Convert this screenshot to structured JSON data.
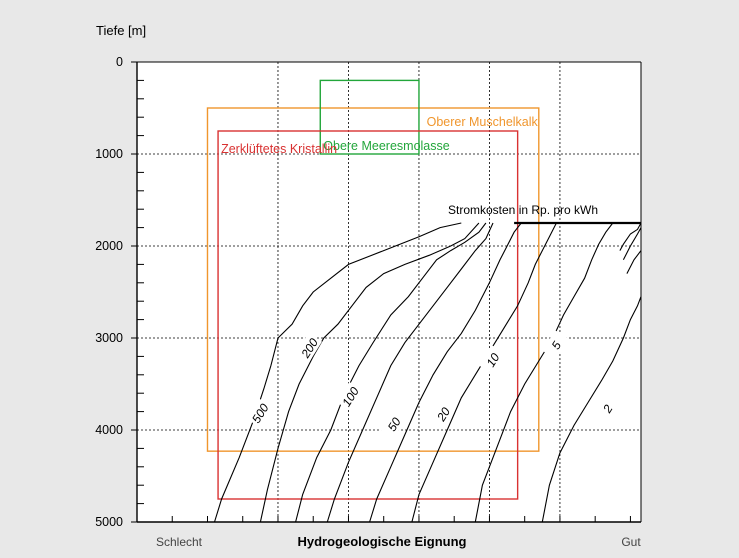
{
  "chart_data": {
    "type": "line",
    "ylabel": "Tiefe [m]",
    "xlabel": "Hydrogeologische Eignung",
    "x_left_label": "Schlecht",
    "x_right_label": "Gut",
    "ylim": [
      0,
      5000
    ],
    "y_inverted": true,
    "y_ticks": [
      "0",
      "1000",
      "2000",
      "3000",
      "4000",
      "5000"
    ],
    "grid": true,
    "colors": {
      "background": "#e8e8e8",
      "plot": "#ffffff",
      "axis": "#000000",
      "curve": "#000000",
      "kristallin": "#d93232",
      "muschelkalk": "#f0962d",
      "meeresmolasse": "#22a63a"
    },
    "regions": [
      {
        "name": "Oberer Muschelkalk",
        "x": [
          1.0,
          5.7
        ],
        "depth": [
          500,
          4230
        ]
      },
      {
        "name": "Obere Meeresmolasse",
        "x": [
          2.6,
          4.0
        ],
        "depth": [
          200,
          1000
        ]
      },
      {
        "name": "Zerklüftetes Kristallin",
        "x": [
          1.15,
          5.4
        ],
        "depth": [
          750,
          4750
        ]
      }
    ],
    "cost_title": "Stromkosten in Rp. pro kWh",
    "series": [
      {
        "name": "500",
        "points": [
          [
            1.1,
            5000
          ],
          [
            1.2,
            4750
          ],
          [
            1.45,
            4300
          ],
          [
            1.65,
            3900
          ],
          [
            1.8,
            3550
          ],
          [
            1.9,
            3300
          ],
          [
            2.0,
            3000
          ],
          [
            2.2,
            2850
          ],
          [
            2.35,
            2650
          ],
          [
            2.5,
            2500
          ],
          [
            3.0,
            2200
          ],
          [
            3.5,
            2050
          ],
          [
            4.0,
            1900
          ],
          [
            4.3,
            1800
          ],
          [
            4.6,
            1750
          ]
        ]
      },
      {
        "name": "200",
        "points": [
          [
            1.75,
            5000
          ],
          [
            1.85,
            4650
          ],
          [
            2.0,
            4200
          ],
          [
            2.15,
            3800
          ],
          [
            2.3,
            3500
          ],
          [
            2.5,
            3200
          ],
          [
            2.65,
            3000
          ],
          [
            2.85,
            2850
          ],
          [
            3.05,
            2650
          ],
          [
            3.25,
            2450
          ],
          [
            3.5,
            2300
          ],
          [
            3.8,
            2200
          ],
          [
            4.15,
            2100
          ],
          [
            4.45,
            2000
          ],
          [
            4.65,
            1920
          ],
          [
            4.85,
            1750
          ]
        ]
      },
      {
        "name": "100",
        "points": [
          [
            2.25,
            5000
          ],
          [
            2.35,
            4700
          ],
          [
            2.55,
            4300
          ],
          [
            2.75,
            4000
          ],
          [
            2.95,
            3600
          ],
          [
            3.15,
            3300
          ],
          [
            3.35,
            3050
          ],
          [
            3.6,
            2750
          ],
          [
            3.85,
            2550
          ],
          [
            4.05,
            2350
          ],
          [
            4.25,
            2150
          ],
          [
            4.45,
            2050
          ],
          [
            4.65,
            1960
          ],
          [
            4.85,
            1850
          ],
          [
            4.95,
            1750
          ]
        ]
      },
      {
        "name": "50",
        "points": [
          [
            2.7,
            5000
          ],
          [
            2.8,
            4750
          ],
          [
            3.0,
            4350
          ],
          [
            3.2,
            4000
          ],
          [
            3.4,
            3650
          ],
          [
            3.6,
            3300
          ],
          [
            3.8,
            3050
          ],
          [
            4.0,
            2850
          ],
          [
            4.2,
            2650
          ],
          [
            4.4,
            2450
          ],
          [
            4.6,
            2250
          ],
          [
            4.8,
            2050
          ],
          [
            4.95,
            1920
          ],
          [
            5.05,
            1750
          ]
        ]
      },
      {
        "name": "20",
        "points": [
          [
            3.3,
            5000
          ],
          [
            3.4,
            4750
          ],
          [
            3.6,
            4400
          ],
          [
            3.8,
            4050
          ],
          [
            4.0,
            3700
          ],
          [
            4.2,
            3400
          ],
          [
            4.4,
            3150
          ],
          [
            4.6,
            2950
          ],
          [
            4.8,
            2700
          ],
          [
            5.0,
            2400
          ],
          [
            5.15,
            2150
          ],
          [
            5.25,
            2000
          ],
          [
            5.35,
            1850
          ],
          [
            5.45,
            1750
          ]
        ]
      },
      {
        "name": "10",
        "points": [
          [
            3.9,
            5000
          ],
          [
            4.0,
            4700
          ],
          [
            4.2,
            4350
          ],
          [
            4.4,
            4000
          ],
          [
            4.6,
            3650
          ],
          [
            4.8,
            3400
          ],
          [
            5.0,
            3150
          ],
          [
            5.2,
            2900
          ],
          [
            5.4,
            2650
          ],
          [
            5.55,
            2400
          ],
          [
            5.65,
            2200
          ],
          [
            5.75,
            2050
          ],
          [
            5.85,
            1900
          ],
          [
            5.95,
            1750
          ]
        ]
      },
      {
        "name": "5",
        "points": [
          [
            4.8,
            5000
          ],
          [
            4.9,
            4600
          ],
          [
            5.1,
            4200
          ],
          [
            5.3,
            3800
          ],
          [
            5.5,
            3500
          ],
          [
            5.7,
            3250
          ],
          [
            5.9,
            3000
          ],
          [
            6.05,
            2750
          ],
          [
            6.2,
            2550
          ],
          [
            6.35,
            2350
          ],
          [
            6.45,
            2150
          ],
          [
            6.55,
            1980
          ],
          [
            6.65,
            1850
          ],
          [
            6.75,
            1750
          ]
        ]
      },
      {
        "name": "2",
        "points": [
          [
            5.75,
            5000
          ],
          [
            5.85,
            4600
          ],
          [
            6.0,
            4250
          ],
          [
            6.2,
            3950
          ],
          [
            6.4,
            3700
          ],
          [
            6.6,
            3450
          ],
          [
            6.75,
            3250
          ],
          [
            6.9,
            3000
          ],
          [
            7.0,
            2800
          ],
          [
            7.1,
            2650
          ],
          [
            7.15,
            2550
          ]
        ]
      }
    ],
    "top_fan": [
      [
        [
          6.85,
          2050
        ],
        [
          6.9,
          1980
        ],
        [
          7.0,
          1870
        ],
        [
          7.1,
          1820
        ],
        [
          7.15,
          1750
        ]
      ],
      [
        [
          6.9,
          2150
        ],
        [
          7.0,
          2000
        ],
        [
          7.1,
          1870
        ],
        [
          7.15,
          1800
        ]
      ],
      [
        [
          6.95,
          2300
        ],
        [
          7.05,
          2150
        ],
        [
          7.15,
          2050
        ]
      ]
    ],
    "curve_label_positions": [
      {
        "name": "500",
        "at": [
          1.75,
          3820
        ]
      },
      {
        "name": "200",
        "at": [
          2.45,
          3110
        ]
      },
      {
        "name": "100",
        "at": [
          3.03,
          3640
        ]
      },
      {
        "name": "50",
        "at": [
          3.65,
          3940
        ]
      },
      {
        "name": "20",
        "at": [
          4.35,
          3830
        ]
      },
      {
        "name": "10",
        "at": [
          5.05,
          3240
        ]
      },
      {
        "name": "5",
        "at": [
          5.95,
          3080
        ]
      },
      {
        "name": "2",
        "at": [
          6.68,
          3770
        ]
      }
    ],
    "stromkosten_line": {
      "x_from": 5.35,
      "x_to": 7.15,
      "depth": 1750
    }
  }
}
